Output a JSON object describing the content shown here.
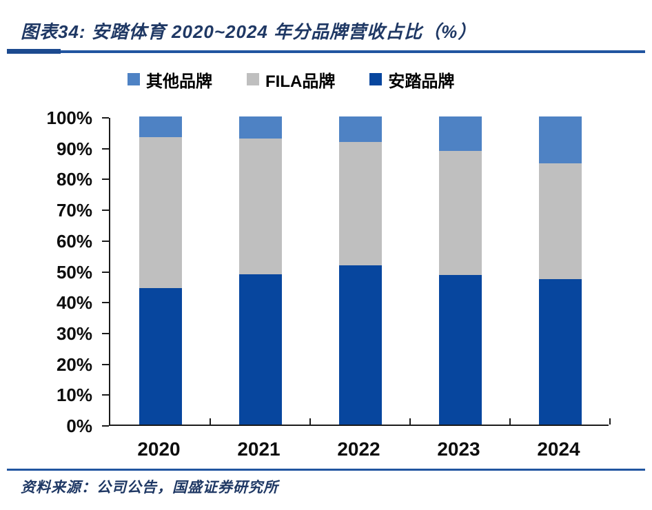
{
  "header": {
    "title": "图表34:  安踏体育 2020~2024 年分品牌营收占比（%）"
  },
  "legend": [
    {
      "label": "其他品牌",
      "color": "#4e82c4"
    },
    {
      "label": "FILA品牌",
      "color": "#bfbfbf"
    },
    {
      "label": "安踏品牌",
      "color": "#07469e"
    }
  ],
  "chart_data": {
    "type": "bar",
    "stacked": true,
    "title": "安踏体育 2020~2024 年分品牌营收占比（%）",
    "categories": [
      "2020",
      "2021",
      "2022",
      "2023",
      "2024"
    ],
    "series": [
      {
        "name": "安踏品牌",
        "color": "#07469e",
        "values": [
          44.3,
          48.7,
          51.7,
          48.6,
          47.3
        ]
      },
      {
        "name": "FILA品牌",
        "color": "#bfbfbf",
        "values": [
          49.1,
          44.2,
          40.1,
          40.3,
          37.6
        ]
      },
      {
        "name": "其他品牌",
        "color": "#4e82c4",
        "values": [
          6.6,
          7.1,
          8.2,
          11.1,
          15.1
        ]
      }
    ],
    "xlabel": "",
    "ylabel": "",
    "ylim": [
      0,
      100
    ],
    "ytick_step": 10,
    "ytick_labels": [
      "0%",
      "10%",
      "20%",
      "30%",
      "40%",
      "50%",
      "60%",
      "70%",
      "80%",
      "90%",
      "100%"
    ],
    "grid": false,
    "legend_position": "top"
  },
  "footer": {
    "source": "资料来源：公司公告，国盛证券研究所"
  },
  "colors": {
    "title_text": "#1f3864",
    "divider": "#2155a0",
    "axis": "#1a1a1a"
  }
}
